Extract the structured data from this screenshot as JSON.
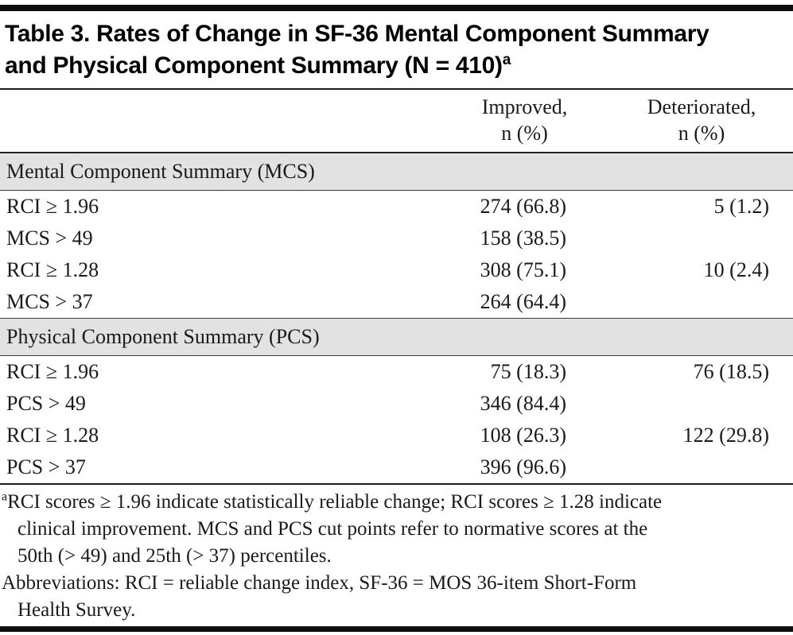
{
  "colors": {
    "section_band": "#e2e2e2",
    "rule": "#0d0d0d",
    "text": "#1a1a1a"
  },
  "table": {
    "title": "Table 3. Rates of Change in SF-36 Mental Component Summary and Physical Component Summary (N = 410)",
    "title_superscript": "a",
    "columns": [
      {
        "label": "Improved,\nn (%)"
      },
      {
        "label": "Deteriorated,\nn (%)"
      }
    ],
    "sections": [
      {
        "header": "Mental Component Summary (MCS)",
        "rows": [
          {
            "label": "RCI ≥ 1.96",
            "improved": "274 (66.8)",
            "deteriorated": "5 (1.2)"
          },
          {
            "label": "MCS > 49",
            "improved": "158 (38.5)",
            "deteriorated": ""
          },
          {
            "label": "RCI ≥ 1.28",
            "improved": "308 (75.1)",
            "deteriorated": "10 (2.4)"
          },
          {
            "label": "MCS > 37",
            "improved": "264 (64.4)",
            "deteriorated": ""
          }
        ]
      },
      {
        "header": "Physical Component Summary (PCS)",
        "rows": [
          {
            "label": "RCI ≥ 1.96",
            "improved": "75 (18.3)",
            "deteriorated": "76 (18.5)"
          },
          {
            "label": "PCS > 49",
            "improved": "346 (84.4)",
            "deteriorated": ""
          },
          {
            "label": "RCI ≥ 1.28",
            "improved": "108 (26.3)",
            "deteriorated": "122 (29.8)"
          },
          {
            "label": "PCS > 37",
            "improved": "396 (96.6)",
            "deteriorated": ""
          }
        ]
      }
    ],
    "footnotes": [
      {
        "marker": "a",
        "text": "RCI scores ≥ 1.96 indicate statistically reliable change; RCI scores ≥ 1.28 indicate clinical improvement. MCS and PCS cut points refer to normative scores at the 50th (> 49) and 25th (> 37) percentiles."
      },
      {
        "marker": "",
        "text": "Abbreviations: RCI = reliable change index, SF-36 = MOS 36-item Short-Form Health Survey."
      }
    ]
  }
}
